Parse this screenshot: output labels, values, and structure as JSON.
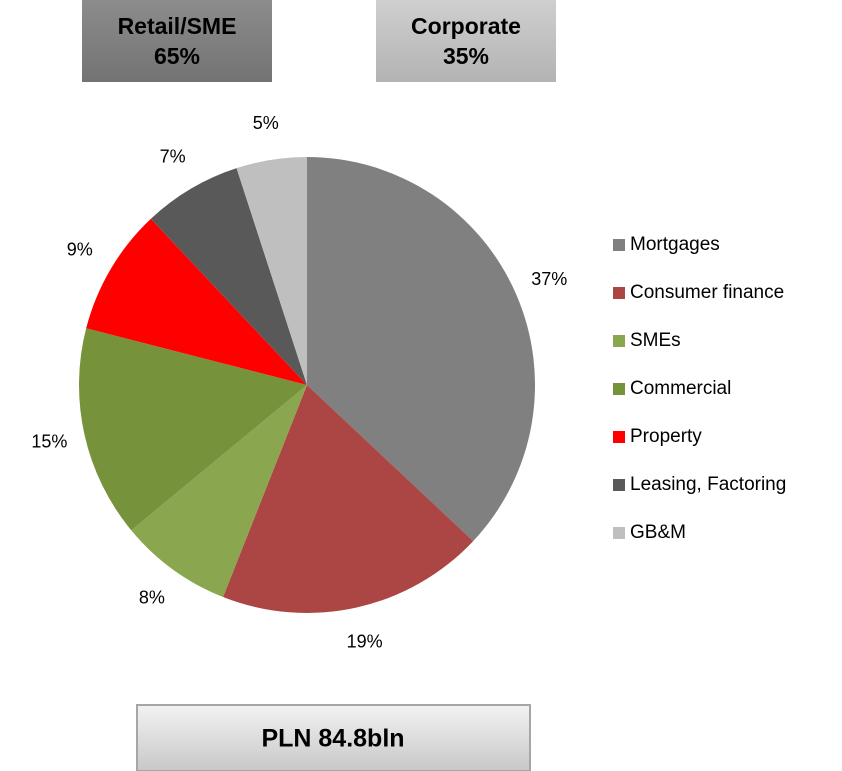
{
  "chart_data": {
    "type": "pie",
    "categories": [
      "Mortgages",
      "Consumer finance",
      "SMEs",
      "Commercial",
      "Property",
      "Leasing, Factoring",
      "GB&M"
    ],
    "values": [
      37,
      19,
      8,
      15,
      9,
      7,
      5
    ],
    "value_labels": [
      "37%",
      "19%",
      "8%",
      "15%",
      "9%",
      "7%",
      "5%"
    ],
    "colors": [
      "#808080",
      "#ab4644",
      "#8aa64e",
      "#76933c",
      "#ff0000",
      "#595959",
      "#bfbfbf"
    ],
    "legend": "right",
    "groups": [
      {
        "name": "Retail/SME",
        "share": "65%"
      },
      {
        "name": "Corporate",
        "share": "35%"
      }
    ],
    "total": "PLN 84.8bln"
  }
}
